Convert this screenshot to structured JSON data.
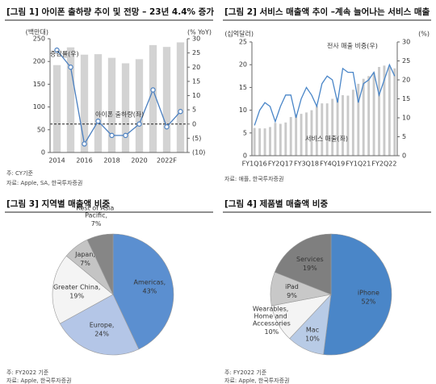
{
  "chart_data": [
    {
      "type": "bar",
      "title": "[그림 1] 아이폰 출하량 추이 및 전망 – 23년 4.4% 증가",
      "ylabel": "(백만대)",
      "y2label": "(% YoY)",
      "categories": [
        "2014",
        null,
        "2016",
        null,
        "2018",
        null,
        "2020",
        null,
        "2022F",
        null
      ],
      "series": [
        {
          "name": "아이폰 출하량(좌)",
          "color": "#d3d3d3",
          "values": [
            192,
            231,
            215,
            216,
            208,
            196,
            205,
            236,
            232,
            242
          ]
        },
        {
          "name": "증감률(우)",
          "type": "line",
          "axis": "y2",
          "color": "#4a7fc0",
          "markers": true,
          "values": [
            26,
            20,
            -7,
            1,
            -4,
            -4,
            0,
            12,
            -1,
            4.4
          ]
        }
      ],
      "ylim": [
        0,
        250
      ],
      "yticks": [
        0,
        50,
        100,
        150,
        200,
        250
      ],
      "y2lim": [
        -10,
        30
      ],
      "y2ticks": [
        {
          "value": -10,
          "label": "(10)"
        },
        {
          "value": -5,
          "label": "(5)"
        },
        0,
        5,
        10,
        15,
        20,
        25,
        30
      ],
      "y2_reference_line": 0,
      "notes": [
        "주: CY기준",
        "자료: Apple, SA, 한국투자증권"
      ]
    },
    {
      "type": "bar",
      "title": "[그림 2] 서비스 매출액 추이 –계속 늘어나는 서비스 매출",
      "ylabel": "(십억달러)",
      "y2label": "(%)",
      "categories": [
        "FY1Q16",
        null,
        null,
        null,
        null,
        "FY2Q17",
        null,
        null,
        null,
        null,
        "FY3Q18",
        null,
        null,
        null,
        null,
        "FY4Q19",
        null,
        null,
        null,
        null,
        "FY1Q21",
        null,
        null,
        null,
        null,
        "FY2Q22",
        null,
        null
      ],
      "series": [
        {
          "name": "서비스 매출(좌)",
          "color": "#c9c9c9",
          "values": [
            6.1,
            6.0,
            6.0,
            6.3,
            7.2,
            7.0,
            7.3,
            8.5,
            9.1,
            9.2,
            9.5,
            10.0,
            10.9,
            11.5,
            11.5,
            12.5,
            12.7,
            13.3,
            13.2,
            14.5,
            15.8,
            16.9,
            17.5,
            18.3,
            19.5,
            19.8,
            19.6,
            19.2
          ]
        },
        {
          "name": "전사 매출 비중(우)",
          "type": "line",
          "axis": "y2",
          "color": "#4a86c8",
          "markers": false,
          "values": [
            8,
            12,
            14,
            13,
            9,
            13,
            16,
            16,
            10,
            15,
            18,
            16,
            13,
            19,
            21,
            20,
            14,
            23,
            22,
            22,
            14,
            19,
            20,
            22,
            16,
            20,
            24,
            21
          ]
        }
      ],
      "ylim": [
        0,
        25
      ],
      "yticks": [
        0,
        5,
        10,
        15,
        20,
        25
      ],
      "y2lim": [
        0,
        30
      ],
      "y2ticks": [
        0,
        5,
        10,
        15,
        20,
        25,
        30
      ],
      "notes": [
        "자료: 애플, 한국투자증권"
      ]
    },
    {
      "type": "pie",
      "title": "[그림 3] 지역별 매출액 비중",
      "categories": [
        "Americas,",
        "Europe,",
        "Greater China,",
        "Japan,",
        "Rest of Asia Pacific,"
      ],
      "values": [
        43,
        24,
        19,
        7,
        7
      ],
      "value_labels": [
        "43%",
        "24%",
        "19%",
        "7%",
        "7%"
      ],
      "colors": [
        "#5b8fd0",
        "#b4c6e7",
        "#f4f4f4",
        "#c4c4c4",
        "#868686"
      ],
      "notes": [
        "주: FY2022 기준",
        "자료: Apple, 한국투자증권"
      ]
    },
    {
      "type": "pie",
      "title": "[그림 4] 제품별 매출액 비중",
      "categories": [
        "iPhone",
        "Mac",
        "Wearables, Home and Accessories",
        "iPad",
        "Services"
      ],
      "values": [
        52,
        10,
        10,
        9,
        19
      ],
      "value_labels": [
        "52%",
        "10%",
        "10%",
        "9%",
        "19%"
      ],
      "colors": [
        "#4a86c8",
        "#b8cbe6",
        "#f4f4f4",
        "#c8c8c8",
        "#7f7f7f"
      ],
      "notes": [
        "주: FY2022 기준",
        "자료: Apple, 한국투자증권"
      ]
    }
  ]
}
